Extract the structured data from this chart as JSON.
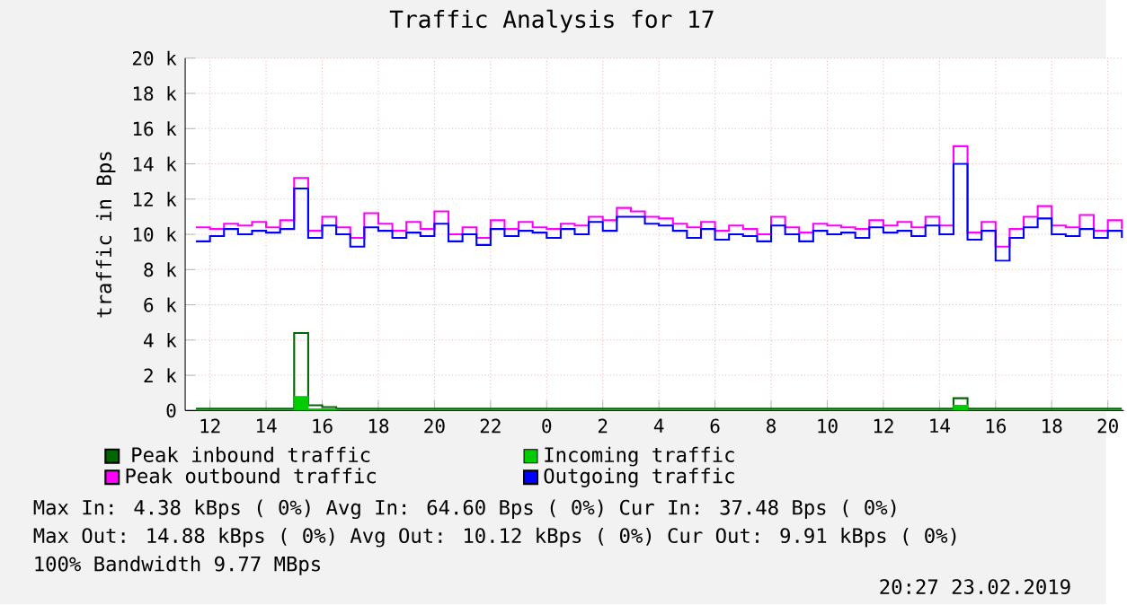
{
  "chart_data": {
    "type": "step",
    "title": "Traffic Analysis for 17",
    "ylabel": "traffic in Bps",
    "x": [
      "2019-02-22T11:30",
      "2019-02-22T12:00",
      "2019-02-22T12:30",
      "2019-02-22T13:00",
      "2019-02-22T13:30",
      "2019-02-22T14:00",
      "2019-02-22T14:30",
      "2019-02-22T15:00",
      "2019-02-22T15:30",
      "2019-02-22T16:00",
      "2019-02-22T16:30",
      "2019-02-22T17:00",
      "2019-02-22T17:30",
      "2019-02-22T18:00",
      "2019-02-22T18:30",
      "2019-02-22T19:00",
      "2019-02-22T19:30",
      "2019-02-22T20:00",
      "2019-02-22T20:30",
      "2019-02-22T21:00",
      "2019-02-22T21:30",
      "2019-02-22T22:00",
      "2019-02-22T22:30",
      "2019-02-22T23:00",
      "2019-02-22T23:30",
      "2019-02-23T00:00",
      "2019-02-23T00:30",
      "2019-02-23T01:00",
      "2019-02-23T01:30",
      "2019-02-23T02:00",
      "2019-02-23T02:30",
      "2019-02-23T03:00",
      "2019-02-23T03:30",
      "2019-02-23T04:00",
      "2019-02-23T04:30",
      "2019-02-23T05:00",
      "2019-02-23T05:30",
      "2019-02-23T06:00",
      "2019-02-23T06:30",
      "2019-02-23T07:00",
      "2019-02-23T07:30",
      "2019-02-23T08:00",
      "2019-02-23T08:30",
      "2019-02-23T09:00",
      "2019-02-23T09:30",
      "2019-02-23T10:00",
      "2019-02-23T10:30",
      "2019-02-23T11:00",
      "2019-02-23T11:30",
      "2019-02-23T12:00",
      "2019-02-23T12:30",
      "2019-02-23T13:00",
      "2019-02-23T13:30",
      "2019-02-23T14:00",
      "2019-02-23T14:30",
      "2019-02-23T15:00",
      "2019-02-23T15:30",
      "2019-02-23T16:00",
      "2019-02-23T16:30",
      "2019-02-23T17:00",
      "2019-02-23T17:30",
      "2019-02-23T18:00",
      "2019-02-23T18:30",
      "2019-02-23T19:00",
      "2019-02-23T19:30",
      "2019-02-23T20:00",
      "2019-02-23T20:30"
    ],
    "series": [
      {
        "name": "Peak inbound traffic",
        "color": "#006600",
        "values": [
          100,
          100,
          100,
          100,
          100,
          100,
          100,
          4400,
          300,
          200,
          100,
          100,
          100,
          100,
          100,
          100,
          100,
          100,
          100,
          100,
          100,
          100,
          100,
          100,
          100,
          100,
          100,
          100,
          100,
          100,
          100,
          100,
          100,
          100,
          100,
          100,
          100,
          100,
          100,
          100,
          100,
          100,
          100,
          100,
          100,
          100,
          100,
          100,
          100,
          100,
          100,
          100,
          100,
          100,
          700,
          100,
          100,
          100,
          100,
          100,
          100,
          100,
          100,
          100,
          100,
          100,
          100
        ]
      },
      {
        "name": "Incoming traffic",
        "color": "#00cc00",
        "type": "area",
        "values": [
          0,
          0,
          0,
          0,
          0,
          0,
          0,
          800,
          100,
          100,
          0,
          0,
          0,
          0,
          0,
          0,
          0,
          0,
          0,
          0,
          0,
          0,
          0,
          0,
          0,
          0,
          0,
          0,
          0,
          0,
          0,
          0,
          0,
          0,
          0,
          0,
          0,
          0,
          0,
          0,
          0,
          0,
          0,
          0,
          0,
          0,
          0,
          0,
          0,
          0,
          0,
          0,
          0,
          0,
          300,
          0,
          0,
          0,
          0,
          0,
          0,
          0,
          0,
          0,
          0,
          0,
          0
        ]
      },
      {
        "name": "Peak outbound traffic",
        "color": "#ff00ff",
        "values": [
          10400,
          10300,
          10600,
          10500,
          10700,
          10400,
          10800,
          13200,
          10200,
          11000,
          10400,
          9800,
          11200,
          10600,
          10200,
          10700,
          10300,
          11300,
          10000,
          10400,
          9800,
          10800,
          10300,
          10700,
          10400,
          10300,
          10600,
          10500,
          11000,
          10800,
          11500,
          11300,
          11000,
          10900,
          10600,
          10400,
          10700,
          10200,
          10500,
          10300,
          10000,
          11000,
          10400,
          10100,
          10600,
          10500,
          10400,
          10300,
          10800,
          10500,
          10700,
          10400,
          11000,
          10500,
          15000,
          10100,
          10700,
          9300,
          10300,
          11000,
          11600,
          10500,
          10400,
          11100,
          10200,
          10800,
          10300
        ]
      },
      {
        "name": "Outgoing traffic",
        "color": "#0000ff",
        "values": [
          9600,
          9900,
          10300,
          10000,
          10200,
          10100,
          10300,
          12600,
          9800,
          10500,
          10000,
          9300,
          10400,
          10200,
          9800,
          10100,
          9900,
          10600,
          9600,
          10000,
          9400,
          10300,
          9900,
          10200,
          10100,
          9800,
          10300,
          10000,
          10700,
          10200,
          11000,
          11000,
          10600,
          10500,
          10200,
          9800,
          10300,
          9700,
          10000,
          9900,
          9600,
          10500,
          10000,
          9600,
          10200,
          10000,
          10100,
          9800,
          10400,
          10100,
          10200,
          9900,
          10500,
          10000,
          14000,
          9700,
          10200,
          8500,
          9800,
          10400,
          10900,
          10000,
          9900,
          10300,
          9800,
          10200,
          9800
        ]
      }
    ],
    "xlim": [
      "2019-02-22T11:07",
      "2019-02-23T20:34"
    ],
    "xticks": [
      {
        "value": "2019-02-22T12:00",
        "label": "12"
      },
      {
        "value": "2019-02-22T14:00",
        "label": "14"
      },
      {
        "value": "2019-02-22T16:00",
        "label": "16"
      },
      {
        "value": "2019-02-22T18:00",
        "label": "18"
      },
      {
        "value": "2019-02-22T20:00",
        "label": "20"
      },
      {
        "value": "2019-02-22T22:00",
        "label": "22"
      },
      {
        "value": "2019-02-23T00:00",
        "label": "0"
      },
      {
        "value": "2019-02-23T02:00",
        "label": "2"
      },
      {
        "value": "2019-02-23T04:00",
        "label": "4"
      },
      {
        "value": "2019-02-23T06:00",
        "label": "6"
      },
      {
        "value": "2019-02-23T08:00",
        "label": "8"
      },
      {
        "value": "2019-02-23T10:00",
        "label": "10"
      },
      {
        "value": "2019-02-23T12:00",
        "label": "12"
      },
      {
        "value": "2019-02-23T14:00",
        "label": "14"
      },
      {
        "value": "2019-02-23T16:00",
        "label": "16"
      },
      {
        "value": "2019-02-23T18:00",
        "label": "18"
      },
      {
        "value": "2019-02-23T20:00",
        "label": "20"
      }
    ],
    "ylim": [
      0,
      20000
    ],
    "yticks": [
      0,
      {
        "value": 2000,
        "label": "2 k"
      },
      {
        "value": 4000,
        "label": "4 k"
      },
      {
        "value": 6000,
        "label": "6 k"
      },
      {
        "value": 8000,
        "label": "8 k"
      },
      {
        "value": 10000,
        "label": "10 k"
      },
      {
        "value": 12000,
        "label": "12 k"
      },
      {
        "value": 14000,
        "label": "14 k"
      },
      {
        "value": 16000,
        "label": "16 k"
      },
      {
        "value": 18000,
        "label": "18 k"
      },
      {
        "value": 20000,
        "label": "20 k"
      }
    ],
    "grid": true,
    "legend": "bottom",
    "annotations": [
      "Max In:   4.38 kBps ( 0%)  Avg In:  64.60  Bps ( 0%)  Cur In:  37.48  Bps ( 0%)",
      "Max Out: 14.88 kBps ( 0%)  Avg Out: 10.12 kBps ( 0%)  Cur Out:  9.91 kBps ( 0%)",
      "100% Bandwidth 9.77 MBps",
      "20:27 23.02.2019"
    ]
  }
}
